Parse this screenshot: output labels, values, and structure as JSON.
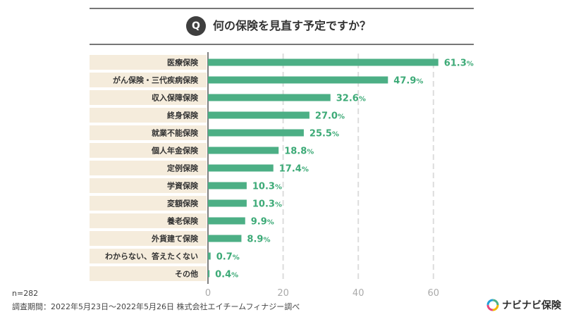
{
  "question": {
    "badge": "Q",
    "text": "何の保険を見直す予定ですか？"
  },
  "colors": {
    "bar": "#4caf85",
    "label_bg": "#f5ecdc",
    "value_text": "#3daa77",
    "grid": "#dddddd"
  },
  "chart_data": {
    "type": "bar",
    "orientation": "horizontal",
    "categories": [
      "医療保険",
      "がん保険・三代疾病保険",
      "収入保障保険",
      "終身保険",
      "就業不能保険",
      "個人年金保険",
      "定例保険",
      "学資保険",
      "変額保険",
      "養老保険",
      "外貨建て保険",
      "わからない、答えたくない",
      "その他"
    ],
    "values": [
      61.3,
      47.9,
      32.6,
      27.0,
      25.5,
      18.8,
      17.4,
      10.3,
      10.3,
      9.9,
      8.9,
      0.7,
      0.4
    ],
    "value_labels": [
      "61.3",
      "47.9",
      "32.6",
      "27.0",
      "25.5",
      "18.8",
      "17.4",
      "10.3",
      "10.3",
      "9.9",
      "8.9",
      "0.7",
      "0.4"
    ],
    "value_suffix": "%",
    "xlim": [
      0,
      70
    ],
    "x_ticks": [
      0,
      20,
      40,
      60
    ],
    "grid": true,
    "title": "何の保険を見直す予定ですか？",
    "xlabel": "",
    "ylabel": ""
  },
  "footer": {
    "sample": "n=282",
    "source": "調査期間：2022年5月23日〜2022年5月26日 株式会社エイチームフィナジー調べ"
  },
  "logo": {
    "text": "ナビナビ保険"
  }
}
